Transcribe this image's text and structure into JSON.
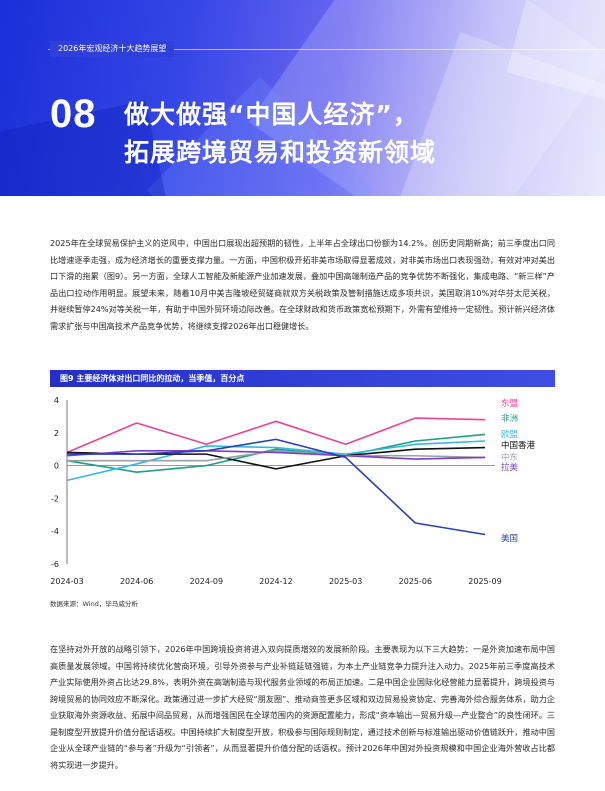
{
  "header": {
    "label": "2026年宏观经济十大趋势展望"
  },
  "chapter": {
    "number": "08",
    "title_line1": "做大做强“中国人经济”，",
    "title_line2": "拓展跨境贸易和投资新领域"
  },
  "paragraphs": {
    "p1": "2025年在全球贸易保护主义的逆风中，中国出口展现出超预期的韧性，上半年占全球出口份额为14.2%，创历史同期新高；前三季度出口同比增速逐季走强，成为经济增长的重要支撑力量。一方面，中国积极开拓非美市场取得显著成效，对非美市场出口表现强劲，有效对冲对美出口下滑的拖累（图9）。另一方面，全球人工智能及新能源产业加速发展，叠加中国高端制造产品的竞争优势不断强化，集成电路、“新三样”产品出口拉动作用明显。展望未来，随着10月中美吉隆坡经贸磋商就双方关税政策及管制措施达成多项共识，美国取消10%对华芬太尼关税，并继续暂停24%对等关税一年，有助于中国外贸环境边际改善。在全球财政和货币政策宽松预期下，外需有望维持一定韧性。预计新兴经济体需求扩张与中国高技术产品竞争优势，将继续支撑2026年出口稳健增长。",
    "p2": "在坚持对外开放的战略引领下，2026年中国跨境投资将进入双向提质增效的发展新阶段。主要表现为以下三大趋势：一是外资加速布局中国高质量发展领域。中国将持续优化营商环境，引导外资参与产业补链延链强链，为本土产业链竞争力提升注入动力。2025年前三季度高技术产业实际使用外资占比达29.8%，表明外资在高端制造与现代服务业领域的布局正加速。二是中国企业国际化经营能力显著提升，跨境投资与跨境贸易的协同效应不断深化。政策通过进一步扩大经贸“朋友圈”、推动商签更多区域和双边贸易投资协定、完善海外综合服务体系，助力企业获取海外资源收益、拓展中间品贸易，从而增强国民在全球范围内的资源配置能力，形成“资本输出—贸易升级—产业整合”的良性闭环。三是制度型开放提升价值分配话语权。中国持续扩大制度型开放，积极参与国际规则制定，通过技术创新与标准输出驱动价值链跃升，推动中国企业从全球产业链的“参与者”升级为“引领者”，从而显著提升价值分配的话语权。预计2026年中国对外投资规模和中国企业海外营收占比都将实现进一步提升。"
  },
  "figure": {
    "caption": "图9 主要经济体对出口同比的拉动，当季值，百分点",
    "source": "数据来源：Wind，毕马威分析"
  },
  "chart_data": {
    "type": "line",
    "title": "",
    "xlabel": "",
    "ylabel": "",
    "x": [
      "2024-03",
      "2024-06",
      "2024-09",
      "2024-12",
      "2025-03",
      "2025-06",
      "2025-09"
    ],
    "ylim": [
      -6,
      4
    ],
    "yticks": [
      -6,
      -4,
      -2,
      0,
      2,
      4
    ],
    "grid": false,
    "legend": "inline-right",
    "series": [
      {
        "name": "东盟",
        "color": "#e8449a",
        "values": [
          0.8,
          2.6,
          1.3,
          2.7,
          1.3,
          2.9,
          2.8
        ]
      },
      {
        "name": "非洲",
        "color": "#1f9e86",
        "values": [
          0.3,
          -0.4,
          0.0,
          1.0,
          0.6,
          1.5,
          1.9
        ]
      },
      {
        "name": "欧盟",
        "color": "#36b8df",
        "values": [
          -0.9,
          0.1,
          1.2,
          1.1,
          0.7,
          1.3,
          1.5
        ]
      },
      {
        "name": "中国香港",
        "color": "#111111",
        "values": [
          0.8,
          0.7,
          0.7,
          -0.2,
          0.6,
          1.0,
          1.1
        ]
      },
      {
        "name": "中东",
        "color": "#9aa0a8",
        "values": [
          0.3,
          0.3,
          0.3,
          0.9,
          0.6,
          0.6,
          0.5
        ]
      },
      {
        "name": "拉美",
        "color": "#7b3fc6",
        "values": [
          0.6,
          0.9,
          0.9,
          0.8,
          0.6,
          0.4,
          0.5
        ]
      },
      {
        "name": "美国",
        "color": "#2a3fb8",
        "values": [
          0.7,
          0.7,
          0.9,
          1.6,
          0.5,
          -3.5,
          -4.2
        ]
      }
    ]
  }
}
